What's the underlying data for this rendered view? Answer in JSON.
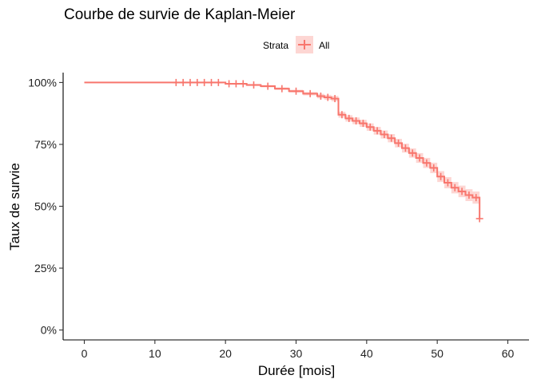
{
  "chart_data": {
    "type": "line",
    "title": "Courbe de survie de Kaplan-Meier",
    "xlabel": "Durée [mois]",
    "ylabel": "Taux de survie",
    "xlim": [
      -3,
      63
    ],
    "ylim": [
      -0.04,
      1.04
    ],
    "x_ticks": [
      0,
      10,
      20,
      30,
      40,
      50,
      60
    ],
    "x_tick_labels": [
      "0",
      "10",
      "20",
      "30",
      "40",
      "50",
      "60"
    ],
    "y_ticks": [
      0,
      0.25,
      0.5,
      0.75,
      1
    ],
    "y_tick_labels": [
      "0%",
      "25%",
      "50%",
      "75%",
      "100%"
    ],
    "legend": {
      "title": "Strata",
      "entries": [
        "All"
      ],
      "placement": "top"
    },
    "grid": false,
    "colors": {
      "line": "#F8766D",
      "ribbon": "#F8766D"
    },
    "series": [
      {
        "name": "All",
        "steps": [
          [
            0,
            1.0
          ],
          [
            20,
            0.995
          ],
          [
            23,
            0.99
          ],
          [
            25,
            0.985
          ],
          [
            27,
            0.975
          ],
          [
            29,
            0.965
          ],
          [
            31,
            0.955
          ],
          [
            33,
            0.945
          ],
          [
            34,
            0.94
          ],
          [
            35,
            0.935
          ],
          [
            36,
            0.87
          ],
          [
            37,
            0.855
          ],
          [
            38,
            0.845
          ],
          [
            39,
            0.835
          ],
          [
            40,
            0.82
          ],
          [
            41,
            0.805
          ],
          [
            42,
            0.79
          ],
          [
            43,
            0.775
          ],
          [
            44,
            0.755
          ],
          [
            45,
            0.735
          ],
          [
            46,
            0.715
          ],
          [
            47,
            0.695
          ],
          [
            48,
            0.675
          ],
          [
            49,
            0.655
          ],
          [
            50,
            0.62
          ],
          [
            51,
            0.595
          ],
          [
            52,
            0.575
          ],
          [
            53,
            0.56
          ],
          [
            54,
            0.545
          ],
          [
            55,
            0.535
          ],
          [
            56,
            0.45
          ]
        ],
        "end_x": 56,
        "censored": [
          [
            13,
            1.0
          ],
          [
            14,
            1.0
          ],
          [
            15,
            1.0
          ],
          [
            16,
            1.0
          ],
          [
            17,
            1.0
          ],
          [
            18,
            1.0
          ],
          [
            19,
            1.0
          ],
          [
            20.5,
            0.995
          ],
          [
            21.5,
            0.995
          ],
          [
            22.5,
            0.995
          ],
          [
            24,
            0.99
          ],
          [
            26,
            0.985
          ],
          [
            28,
            0.975
          ],
          [
            30,
            0.965
          ],
          [
            32,
            0.955
          ],
          [
            33.5,
            0.945
          ],
          [
            34.5,
            0.94
          ],
          [
            35.5,
            0.935
          ],
          [
            36.5,
            0.87
          ],
          [
            37.5,
            0.855
          ],
          [
            38.5,
            0.845
          ],
          [
            39.5,
            0.835
          ],
          [
            40.5,
            0.82
          ],
          [
            41.5,
            0.805
          ],
          [
            42.5,
            0.79
          ],
          [
            43.5,
            0.775
          ],
          [
            44.5,
            0.755
          ],
          [
            45.5,
            0.735
          ],
          [
            46.5,
            0.715
          ],
          [
            47.5,
            0.695
          ],
          [
            48.5,
            0.675
          ],
          [
            49.5,
            0.655
          ],
          [
            50.5,
            0.62
          ],
          [
            51.5,
            0.595
          ],
          [
            52.5,
            0.575
          ],
          [
            53.5,
            0.56
          ],
          [
            54.5,
            0.545
          ],
          [
            55.5,
            0.535
          ],
          [
            56,
            0.45
          ]
        ],
        "ci_half_width": [
          [
            0,
            0.0
          ],
          [
            20,
            0.003
          ],
          [
            30,
            0.006
          ],
          [
            36,
            0.012
          ],
          [
            40,
            0.015
          ],
          [
            45,
            0.018
          ],
          [
            50,
            0.022
          ],
          [
            56,
            0.025
          ]
        ]
      }
    ]
  }
}
